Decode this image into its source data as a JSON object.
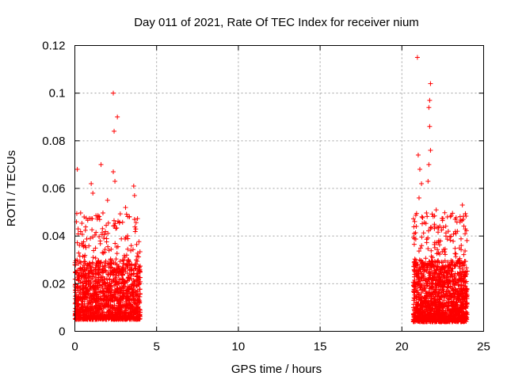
{
  "chart_data": {
    "type": "scatter",
    "title": "Day 011 of 2021, Rate Of TEC Index for receiver nium",
    "xlabel": "GPS time / hours",
    "ylabel": "ROTI / TECUs",
    "xlim": [
      0,
      25
    ],
    "ylim": [
      0,
      0.12
    ],
    "xticks": [
      0,
      5,
      10,
      15,
      20,
      25
    ],
    "yticks": [
      0,
      0.02,
      0.04,
      0.06,
      0.08,
      0.1,
      0.12
    ],
    "xtick_labels": [
      "0",
      "5",
      "10",
      "15",
      "20",
      "25"
    ],
    "ytick_labels": [
      "0",
      "0.02",
      "0.04",
      "0.06",
      "0.08",
      "0.1",
      "0.12"
    ],
    "grid": true,
    "marker": "+",
    "marker_color": "#ff0000",
    "series": [
      {
        "segments": [
          {
            "x_range": [
              0,
              4.0
            ],
            "typical_range": [
              0.005,
              0.03
            ]
          },
          {
            "x_range": [
              20.7,
              24.0
            ],
            "typical_range": [
              0.004,
              0.03
            ]
          }
        ],
        "outliers": [
          {
            "x": 0.15,
            "y": 0.068
          },
          {
            "x": 0.1,
            "y": 0.046
          },
          {
            "x": 0.2,
            "y": 0.043
          },
          {
            "x": 1.0,
            "y": 0.062
          },
          {
            "x": 1.1,
            "y": 0.058
          },
          {
            "x": 1.6,
            "y": 0.07
          },
          {
            "x": 2.0,
            "y": 0.055
          },
          {
            "x": 2.35,
            "y": 0.1
          },
          {
            "x": 2.4,
            "y": 0.084
          },
          {
            "x": 2.6,
            "y": 0.09
          },
          {
            "x": 2.35,
            "y": 0.067
          },
          {
            "x": 2.45,
            "y": 0.063
          },
          {
            "x": 3.1,
            "y": 0.052
          },
          {
            "x": 3.6,
            "y": 0.061
          },
          {
            "x": 3.65,
            "y": 0.057
          },
          {
            "x": 20.95,
            "y": 0.115
          },
          {
            "x": 21.0,
            "y": 0.074
          },
          {
            "x": 21.1,
            "y": 0.068
          },
          {
            "x": 21.2,
            "y": 0.062
          },
          {
            "x": 21.05,
            "y": 0.056
          },
          {
            "x": 21.75,
            "y": 0.104
          },
          {
            "x": 21.7,
            "y": 0.097
          },
          {
            "x": 21.65,
            "y": 0.094
          },
          {
            "x": 21.7,
            "y": 0.086
          },
          {
            "x": 21.75,
            "y": 0.076
          },
          {
            "x": 21.65,
            "y": 0.07
          },
          {
            "x": 21.6,
            "y": 0.063
          },
          {
            "x": 22.1,
            "y": 0.051
          },
          {
            "x": 23.7,
            "y": 0.053
          },
          {
            "x": 23.75,
            "y": 0.047
          }
        ]
      }
    ]
  }
}
